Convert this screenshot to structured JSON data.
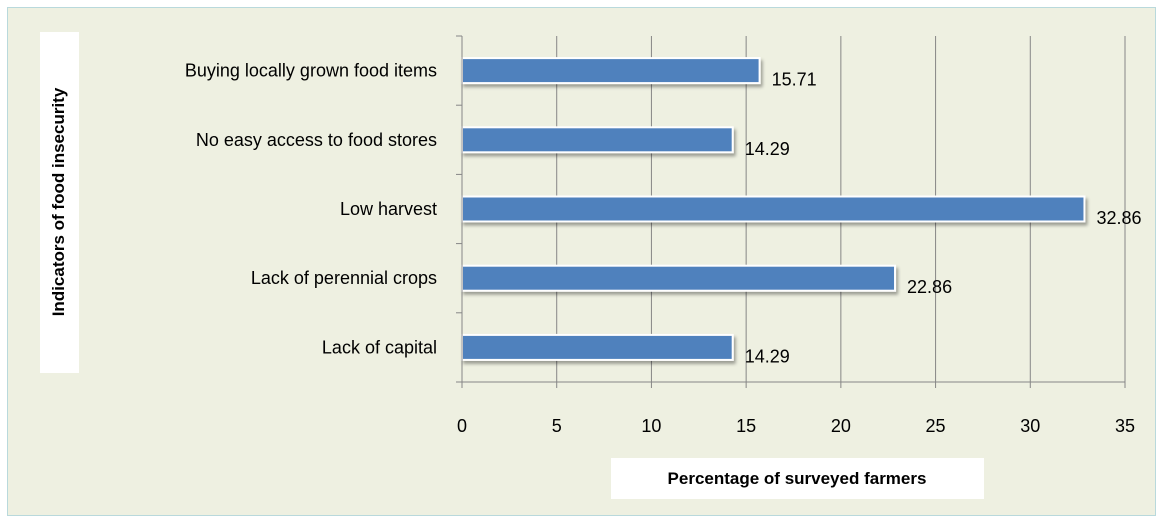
{
  "colors": {
    "bar": "#4f81bd",
    "background": "#eef0e1",
    "border": "#b9d9dc"
  },
  "chart_data": {
    "type": "bar",
    "orientation": "horizontal",
    "categories": [
      "Buying locally grown food items",
      "No easy access to food stores",
      "Low harvest ",
      "Lack of perennial crops",
      "Lack of capital"
    ],
    "values": [
      15.71,
      14.29,
      32.86,
      22.86,
      14.29
    ],
    "data_labels": [
      "15.71",
      "14.29",
      "32.86",
      "22.86",
      "14.29"
    ],
    "xlabel": "Percentage of surveyed farmers",
    "ylabel": "Indicators of food insecurity",
    "xlim": [
      0,
      35
    ],
    "xticks": [
      0,
      5,
      10,
      15,
      20,
      25,
      30,
      35
    ],
    "grid": "vertical",
    "legend": "none"
  }
}
